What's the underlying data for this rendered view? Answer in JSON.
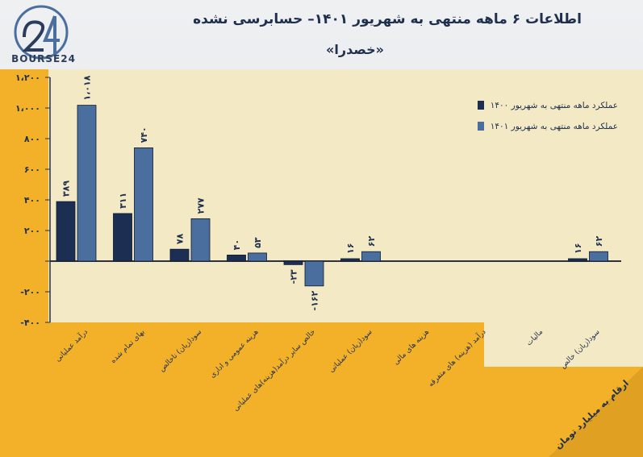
{
  "logo": {
    "mark": "24",
    "text": "BOURSE24"
  },
  "title": "اطلاعات ۶ ماهه منتهی به شهریور ۱۴۰۱– حسابرسی نشده",
  "subtitle": "«خصدرا»",
  "unit_note": "ارقام به میلیارد تومان",
  "colors": {
    "background": "#f3b12a",
    "plot": "#f3e9c4",
    "series_1400": "#1c2f52",
    "series_1401": "#4a6e9e"
  },
  "chart_data": {
    "type": "bar",
    "categories": [
      "درآمد عملیاتی",
      "بهای تمام شده",
      "سود(زیان) ناخالص",
      "هزینه عمومی و اداری",
      "خالص سایر درآمد(هزینه)های عملیاتی",
      "سود(زیان) عملیاتی",
      "هزینه های مالی",
      "درآمد (هزینه) های متفرقه",
      "مالیات",
      "سود(زیان) خالص"
    ],
    "series": [
      {
        "name": "عملکرد ماهه منتهی به شهریور ۱۴۰۰",
        "values": [
          389,
          311,
          78,
          40,
          -23,
          16,
          null,
          null,
          null,
          16
        ],
        "labels": [
          "۳۸۹",
          "۳۱۱",
          "۷۸",
          "۴۰",
          "-۲۳",
          "۱۶",
          "",
          "",
          "",
          "۱۶"
        ]
      },
      {
        "name": "عملکرد ماهه منتهی به شهریور ۱۴۰۱",
        "values": [
          1018,
          740,
          277,
          53,
          -162,
          62,
          null,
          null,
          null,
          62
        ],
        "labels": [
          "۱،۰۱۸",
          "۷۴۰",
          "۲۷۷",
          "۵۳",
          "-۱۶۲",
          "۶۲",
          "",
          "",
          "",
          "۶۲"
        ]
      }
    ],
    "ylim": [
      -400,
      1200
    ],
    "yticks": [
      -400,
      -200,
      0,
      200,
      400,
      600,
      800,
      1000,
      1200
    ],
    "ytick_labels": [
      "-۴۰۰",
      "-۲۰۰",
      "",
      "۲۰۰",
      "۴۰۰",
      "۶۰۰",
      "۸۰۰",
      "۱،۰۰۰",
      "۱،۲۰۰"
    ],
    "grid": false,
    "legend": "top-right"
  }
}
